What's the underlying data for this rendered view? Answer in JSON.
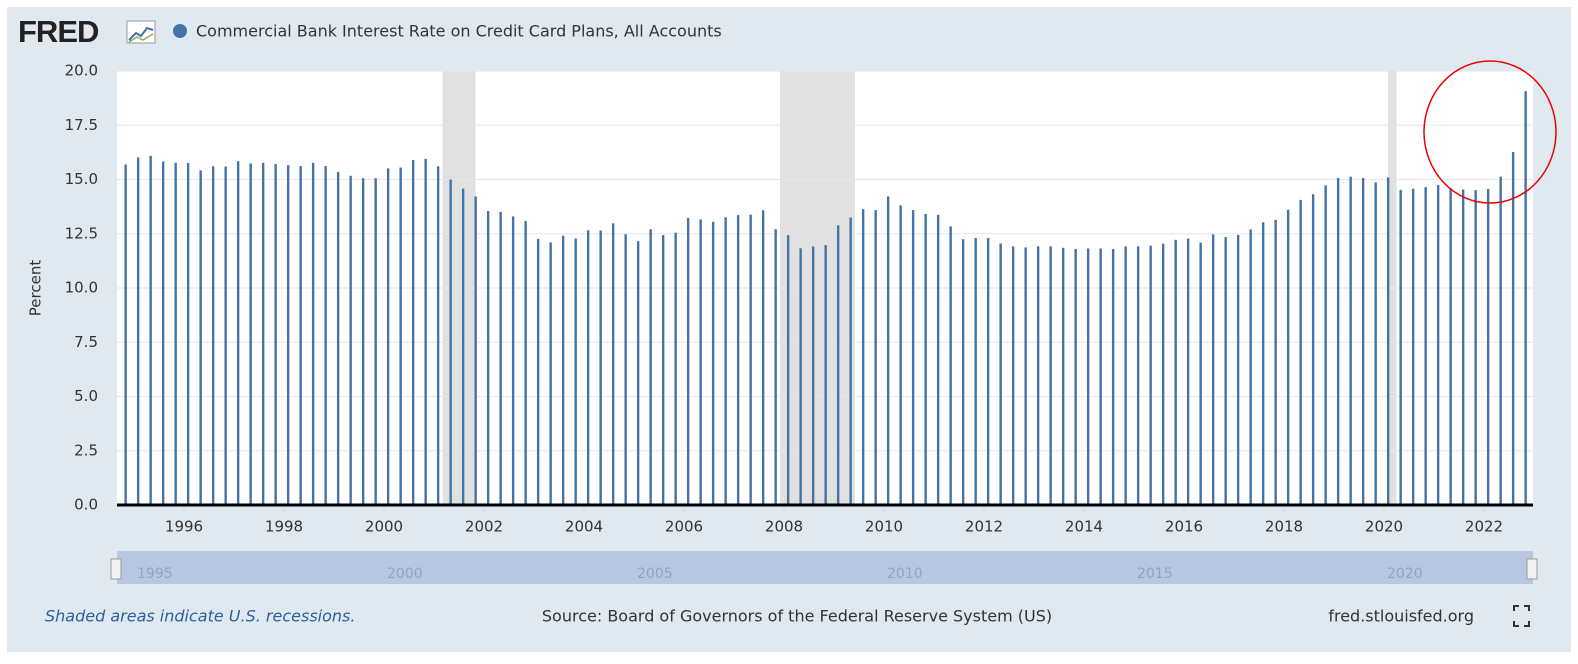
{
  "chart_data": {
    "type": "bar",
    "logo": "FRED",
    "ylabel": "Percent",
    "series": [
      {
        "name": "Commercial Bank Interest Rate on Credit Card Plans, All Accounts",
        "color": "#4572a7",
        "values": [
          15.69,
          16.02,
          16.09,
          15.83,
          15.77,
          15.76,
          15.42,
          15.61,
          15.6,
          15.84,
          15.74,
          15.77,
          15.71,
          15.66,
          15.62,
          15.77,
          15.62,
          15.35,
          15.17,
          15.06,
          15.06,
          15.51,
          15.55,
          15.9,
          15.95,
          15.61,
          15.0,
          14.58,
          14.22,
          13.55,
          13.51,
          13.3,
          13.09,
          12.26,
          12.1,
          12.41,
          12.28,
          12.66,
          12.65,
          12.98,
          12.48,
          12.16,
          12.71,
          12.44,
          12.55,
          13.23,
          13.16,
          13.05,
          13.26,
          13.36,
          13.38,
          13.58,
          12.71,
          12.43,
          11.83,
          11.91,
          11.98,
          12.89,
          13.25,
          13.63,
          13.59,
          14.22,
          13.81,
          13.59,
          13.41,
          13.37,
          12.84,
          12.25,
          12.3,
          12.3,
          12.05,
          11.92,
          11.87,
          11.92,
          11.92,
          11.85,
          11.8,
          11.82,
          11.82,
          11.8,
          11.92,
          11.92,
          11.95,
          12.04,
          12.22,
          12.28,
          12.09,
          12.47,
          12.35,
          12.45,
          12.7,
          13.03,
          13.14,
          13.61,
          14.06,
          14.32,
          14.73,
          15.07,
          15.13,
          15.07,
          14.87,
          15.09,
          14.52,
          14.58,
          14.65,
          14.75,
          14.6,
          14.54,
          14.51,
          14.56,
          15.13,
          16.27,
          19.07
        ]
      }
    ],
    "x_start": 1994.833,
    "x_step": 0.25,
    "xlim": [
      1994.66,
      2022.98
    ],
    "xticks": [
      1996,
      1998,
      2000,
      2002,
      2004,
      2006,
      2008,
      2010,
      2012,
      2014,
      2016,
      2018,
      2020,
      2022
    ],
    "ylim": [
      0,
      20
    ],
    "yticks": [
      {
        "value": 0,
        "label": "0.0"
      },
      2.5,
      {
        "value": 5,
        "label": "5.0"
      },
      7.5,
      {
        "value": 10,
        "label": "10.0"
      },
      12.5,
      {
        "value": 15,
        "label": "15.0"
      },
      17.5,
      {
        "value": 20,
        "label": "20.0"
      }
    ],
    "grid": true,
    "recessions": [
      [
        2001.17,
        2001.83
      ],
      [
        2007.92,
        2009.42
      ],
      [
        2020.08,
        2020.25
      ]
    ],
    "navigator_ticks": [
      1995,
      2000,
      2005,
      2010,
      2015,
      2020
    ],
    "note": "Shaded areas indicate U.S. recessions.",
    "source": "Source: Board of Governors of the Federal Reserve System (US)",
    "site": "fred.stlouisfed.org"
  }
}
